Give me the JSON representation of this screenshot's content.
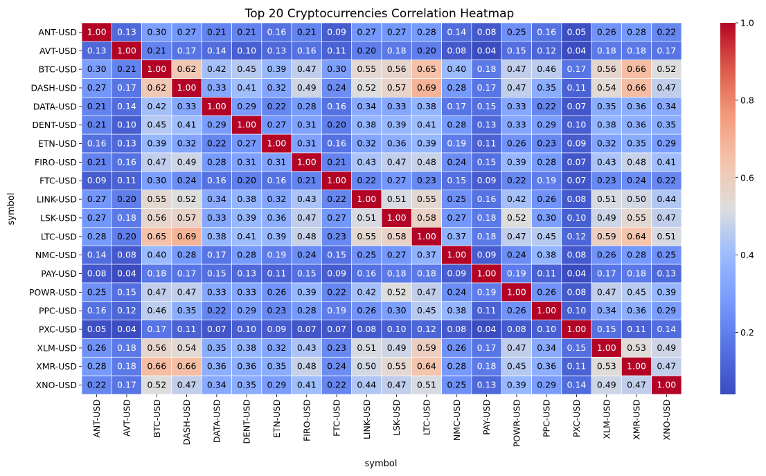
{
  "chart_data": {
    "type": "heatmap",
    "title": "Top 20 Cryptocurrencies Correlation Heatmap",
    "xlabel": "symbol",
    "ylabel": "symbol",
    "colormap": "coolwarm",
    "cmap_colors": [
      "#3b4cc0",
      "#dddddd",
      "#b40426"
    ],
    "value_range": [
      0.04,
      1.0
    ],
    "colorbar_ticks": [
      "0.2",
      "0.4",
      "0.6",
      "0.8",
      "1.0"
    ],
    "categories": [
      "ANT-USD",
      "AVT-USD",
      "BTC-USD",
      "DASH-USD",
      "DATA-USD",
      "DENT-USD",
      "ETN-USD",
      "FIRO-USD",
      "FTC-USD",
      "LINK-USD",
      "LSK-USD",
      "LTC-USD",
      "NMC-USD",
      "PAY-USD",
      "POWR-USD",
      "PPC-USD",
      "PXC-USD",
      "XLM-USD",
      "XMR-USD",
      "XNO-USD"
    ],
    "values": [
      [
        1.0,
        0.13,
        0.3,
        0.27,
        0.21,
        0.21,
        0.16,
        0.21,
        0.09,
        0.27,
        0.27,
        0.28,
        0.14,
        0.08,
        0.25,
        0.16,
        0.05,
        0.26,
        0.28,
        0.22
      ],
      [
        0.13,
        1.0,
        0.21,
        0.17,
        0.14,
        0.1,
        0.13,
        0.16,
        0.11,
        0.2,
        0.18,
        0.2,
        0.08,
        0.04,
        0.15,
        0.12,
        0.04,
        0.18,
        0.18,
        0.17
      ],
      [
        0.3,
        0.21,
        1.0,
        0.62,
        0.42,
        0.45,
        0.39,
        0.47,
        0.3,
        0.55,
        0.56,
        0.65,
        0.4,
        0.18,
        0.47,
        0.46,
        0.17,
        0.56,
        0.66,
        0.52
      ],
      [
        0.27,
        0.17,
        0.62,
        1.0,
        0.33,
        0.41,
        0.32,
        0.49,
        0.24,
        0.52,
        0.57,
        0.69,
        0.28,
        0.17,
        0.47,
        0.35,
        0.11,
        0.54,
        0.66,
        0.47
      ],
      [
        0.21,
        0.14,
        0.42,
        0.33,
        1.0,
        0.29,
        0.22,
        0.28,
        0.16,
        0.34,
        0.33,
        0.38,
        0.17,
        0.15,
        0.33,
        0.22,
        0.07,
        0.35,
        0.36,
        0.34
      ],
      [
        0.21,
        0.1,
        0.45,
        0.41,
        0.29,
        1.0,
        0.27,
        0.31,
        0.2,
        0.38,
        0.39,
        0.41,
        0.28,
        0.13,
        0.33,
        0.29,
        0.1,
        0.38,
        0.36,
        0.35
      ],
      [
        0.16,
        0.13,
        0.39,
        0.32,
        0.22,
        0.27,
        1.0,
        0.31,
        0.16,
        0.32,
        0.36,
        0.39,
        0.19,
        0.11,
        0.26,
        0.23,
        0.09,
        0.32,
        0.35,
        0.29
      ],
      [
        0.21,
        0.16,
        0.47,
        0.49,
        0.28,
        0.31,
        0.31,
        1.0,
        0.21,
        0.43,
        0.47,
        0.48,
        0.24,
        0.15,
        0.39,
        0.28,
        0.07,
        0.43,
        0.48,
        0.41
      ],
      [
        0.09,
        0.11,
        0.3,
        0.24,
        0.16,
        0.2,
        0.16,
        0.21,
        1.0,
        0.22,
        0.27,
        0.23,
        0.15,
        0.09,
        0.22,
        0.19,
        0.07,
        0.23,
        0.24,
        0.22
      ],
      [
        0.27,
        0.2,
        0.55,
        0.52,
        0.34,
        0.38,
        0.32,
        0.43,
        0.22,
        1.0,
        0.51,
        0.55,
        0.25,
        0.16,
        0.42,
        0.26,
        0.08,
        0.51,
        0.5,
        0.44
      ],
      [
        0.27,
        0.18,
        0.56,
        0.57,
        0.33,
        0.39,
        0.36,
        0.47,
        0.27,
        0.51,
        1.0,
        0.58,
        0.27,
        0.18,
        0.52,
        0.3,
        0.1,
        0.49,
        0.55,
        0.47
      ],
      [
        0.28,
        0.2,
        0.65,
        0.69,
        0.38,
        0.41,
        0.39,
        0.48,
        0.23,
        0.55,
        0.58,
        1.0,
        0.37,
        0.18,
        0.47,
        0.45,
        0.12,
        0.59,
        0.64,
        0.51
      ],
      [
        0.14,
        0.08,
        0.4,
        0.28,
        0.17,
        0.28,
        0.19,
        0.24,
        0.15,
        0.25,
        0.27,
        0.37,
        1.0,
        0.09,
        0.24,
        0.38,
        0.08,
        0.26,
        0.28,
        0.25
      ],
      [
        0.08,
        0.04,
        0.18,
        0.17,
        0.15,
        0.13,
        0.11,
        0.15,
        0.09,
        0.16,
        0.18,
        0.18,
        0.09,
        1.0,
        0.19,
        0.11,
        0.04,
        0.17,
        0.18,
        0.13
      ],
      [
        0.25,
        0.15,
        0.47,
        0.47,
        0.33,
        0.33,
        0.26,
        0.39,
        0.22,
        0.42,
        0.52,
        0.47,
        0.24,
        0.19,
        1.0,
        0.26,
        0.08,
        0.47,
        0.45,
        0.39
      ],
      [
        0.16,
        0.12,
        0.46,
        0.35,
        0.22,
        0.29,
        0.23,
        0.28,
        0.19,
        0.26,
        0.3,
        0.45,
        0.38,
        0.11,
        0.26,
        1.0,
        0.1,
        0.34,
        0.36,
        0.29
      ],
      [
        0.05,
        0.04,
        0.17,
        0.11,
        0.07,
        0.1,
        0.09,
        0.07,
        0.07,
        0.08,
        0.1,
        0.12,
        0.08,
        0.04,
        0.08,
        0.1,
        1.0,
        0.15,
        0.11,
        0.14
      ],
      [
        0.26,
        0.18,
        0.56,
        0.54,
        0.35,
        0.38,
        0.32,
        0.43,
        0.23,
        0.51,
        0.49,
        0.59,
        0.26,
        0.17,
        0.47,
        0.34,
        0.15,
        1.0,
        0.53,
        0.49
      ],
      [
        0.28,
        0.18,
        0.66,
        0.66,
        0.36,
        0.36,
        0.35,
        0.48,
        0.24,
        0.5,
        0.55,
        0.64,
        0.28,
        0.18,
        0.45,
        0.36,
        0.11,
        0.53,
        1.0,
        0.47
      ],
      [
        0.22,
        0.17,
        0.52,
        0.47,
        0.34,
        0.35,
        0.29,
        0.41,
        0.22,
        0.44,
        0.47,
        0.51,
        0.25,
        0.13,
        0.39,
        0.29,
        0.14,
        0.49,
        0.47,
        1.0
      ]
    ]
  }
}
